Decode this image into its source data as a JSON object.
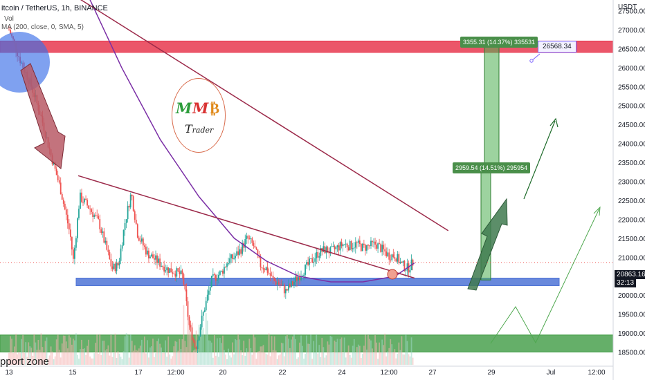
{
  "header": {
    "symbol_title": "itcoin / TetherUS, 1h, BINANCE",
    "indicator_vol": "Vol",
    "indicator_ma": "MA (200, close, 0, SMA, 5)"
  },
  "price_scale": {
    "currency": "USDT",
    "labels": [
      "27500.00",
      "27000.00",
      "26500.00",
      "26000.00",
      "25500.00",
      "25000.00",
      "24500.00",
      "24000.00",
      "23500.00",
      "23000.00",
      "22500.00",
      "22000.00",
      "21500.00",
      "21000.00",
      "20500.00",
      "20000.00",
      "19500.00",
      "19000.00",
      "18500.00"
    ],
    "current_price": "20863.16",
    "countdown": "32:13"
  },
  "time_axis": {
    "labels": [
      "13",
      "15",
      "17",
      "12:00",
      "20",
      "22",
      "24",
      "12:00",
      "27",
      "29",
      "Jul",
      "12:00"
    ]
  },
  "annotations": {
    "measure_upper": "3355.31 (14.37%) 335531",
    "measure_lower": "2959.54 (14.51%) 295954",
    "callout": "26568.34",
    "support_zone": "pport zone"
  },
  "logo": {
    "m1": "M",
    "m2": "M",
    "b": "₿",
    "trader_cap": "T",
    "trader_rest": "rader"
  },
  "colors": {
    "resistance_zone": "#e8384f",
    "support_box": "#4f74d6",
    "support_zone": "#3f9b43",
    "ma_line": "#7b2fa6",
    "trendline": "#9c2a4a",
    "candle_up": "#26a69a",
    "candle_down": "#ef5350",
    "measure": "#4caf50"
  },
  "chart_data": {
    "type": "candlestick",
    "symbol": "itcoin / TetherUS",
    "timeframe": "1h",
    "exchange": "BINANCE",
    "ylim": [
      18500,
      27900
    ],
    "close_path": [
      [
        0,
        27000
      ],
      [
        0.35,
        26200
      ],
      [
        0.7,
        25500
      ],
      [
        1.0,
        24700
      ],
      [
        1.3,
        23700
      ],
      [
        1.6,
        22800
      ],
      [
        1.9,
        21600
      ],
      [
        2.0,
        20900
      ],
      [
        2.2,
        22600
      ],
      [
        2.5,
        22300
      ],
      [
        2.8,
        21900
      ],
      [
        3.0,
        21300
      ],
      [
        3.2,
        20700
      ],
      [
        3.4,
        20800
      ],
      [
        3.6,
        21900
      ],
      [
        3.8,
        22700
      ],
      [
        4.0,
        21600
      ],
      [
        4.3,
        21100
      ],
      [
        4.6,
        20900
      ],
      [
        4.9,
        20700
      ],
      [
        5.2,
        20600
      ],
      [
        5.4,
        20500
      ],
      [
        5.6,
        19200
      ],
      [
        5.8,
        18600
      ],
      [
        6.0,
        19400
      ],
      [
        6.3,
        20400
      ],
      [
        6.6,
        20600
      ],
      [
        6.8,
        20900
      ],
      [
        7.0,
        21000
      ],
      [
        7.2,
        21200
      ],
      [
        7.4,
        21500
      ],
      [
        7.6,
        21300
      ],
      [
        7.8,
        20800
      ],
      [
        8.0,
        20700
      ],
      [
        8.2,
        20400
      ],
      [
        8.4,
        20300
      ],
      [
        8.6,
        20100
      ],
      [
        8.8,
        20300
      ],
      [
        9.0,
        20500
      ],
      [
        9.2,
        20700
      ],
      [
        9.4,
        20900
      ],
      [
        9.6,
        21100
      ],
      [
        9.8,
        21200
      ],
      [
        10.0,
        21150
      ],
      [
        10.2,
        21250
      ],
      [
        10.4,
        21350
      ],
      [
        10.6,
        21300
      ],
      [
        10.8,
        21350
      ],
      [
        11.0,
        21250
      ],
      [
        11.2,
        21300
      ],
      [
        11.4,
        21350
      ],
      [
        11.6,
        21200
      ],
      [
        11.8,
        21050
      ],
      [
        12.0,
        21050
      ],
      [
        12.2,
        20800
      ],
      [
        12.4,
        20700
      ],
      [
        12.55,
        20863
      ]
    ],
    "moving_average": {
      "name": "MA (200, close, 0, SMA, 5)",
      "x": [
        2.4,
        3.5,
        4.7,
        5.9,
        7.0,
        8.0,
        9.0,
        10.0,
        11.0,
        12.0,
        12.6
      ],
      "y": [
        28000,
        26000,
        24100,
        22600,
        21500,
        20900,
        20500,
        20350,
        20350,
        20500,
        20850
      ]
    },
    "horizontal_zones": [
      {
        "name": "resistance",
        "from": 26400,
        "to": 26700
      },
      {
        "name": "support box",
        "from": 20250,
        "to": 20450
      },
      {
        "name": "support zone",
        "from": 18500,
        "to": 18950
      }
    ],
    "trendlines": [
      {
        "from": [
          1.65,
          28100
        ],
        "to": [
          13.65,
          21700
        ]
      },
      {
        "from": [
          2.15,
          23150
        ],
        "to": [
          12.6,
          20450
        ]
      }
    ],
    "measures": [
      {
        "label": "3355.31 (14.37%) 335531",
        "from": 23350,
        "to": 26700
      },
      {
        "label": "2959.54 (14.51%) 295954",
        "from": 20400,
        "to": 23350
      }
    ],
    "current_price": 20863.16
  }
}
